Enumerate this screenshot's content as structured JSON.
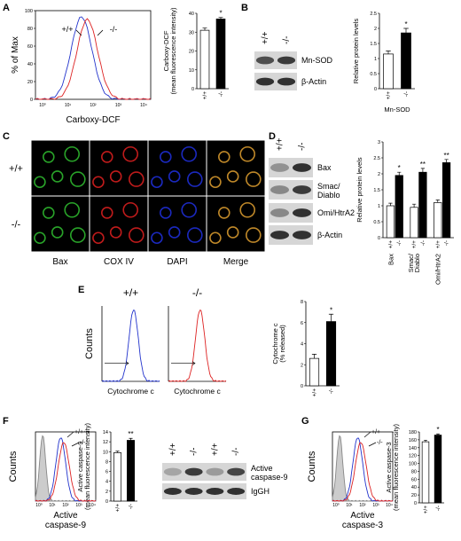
{
  "panels": [
    "A",
    "B",
    "C",
    "D",
    "E",
    "F",
    "G"
  ],
  "chart_data": [
    {
      "type": "bar",
      "ylabel": [
        "Carboxy-DCF",
        "(mean fluorescence intensity)"
      ],
      "categories": [
        "+/+",
        "-/-"
      ],
      "values": [
        31,
        37
      ],
      "errors": [
        1.2,
        0.8
      ],
      "colors": [
        "#ffffff",
        "#000000"
      ],
      "significance": [
        null,
        "*"
      ],
      "ylim": [
        0,
        40
      ],
      "yticks": [
        0,
        10,
        20,
        30,
        40
      ]
    },
    {
      "type": "bar",
      "ylabel": [
        "Relative protein levels"
      ],
      "xlabel": "Mn-SOD",
      "categories": [
        "+/+",
        "-/-"
      ],
      "values": [
        1.15,
        1.85
      ],
      "errors": [
        0.1,
        0.15
      ],
      "colors": [
        "#ffffff",
        "#000000"
      ],
      "significance": [
        null,
        "*"
      ],
      "ylim": [
        0,
        2.5
      ],
      "yticks": [
        0,
        0.5,
        1,
        1.5,
        2,
        2.5
      ]
    },
    {
      "type": "bar",
      "ylabel": [
        "Relative protein levels"
      ],
      "categories": [
        "Bax",
        [
          "Smac/",
          "Diablo"
        ],
        "Omi/HtrA2"
      ],
      "series": [
        {
          "name": "+/+",
          "color": "#ffffff",
          "values": [
            1,
            0.95,
            1.1
          ],
          "errors": [
            0.08,
            0.1,
            0.08
          ]
        },
        {
          "name": "-/-",
          "color": "#000000",
          "values": [
            1.95,
            2.05,
            2.35
          ],
          "errors": [
            0.1,
            0.12,
            0.1
          ]
        }
      ],
      "significance": [
        "*",
        "**",
        "**"
      ],
      "ylim": [
        0,
        3
      ],
      "yticks": [
        0,
        0.5,
        1,
        1.5,
        2,
        2.5,
        3
      ]
    },
    {
      "type": "bar",
      "ylabel": [
        "Cytochrome c",
        "(% released)"
      ],
      "categories": [
        "+/+",
        "-/-"
      ],
      "values": [
        2.6,
        6.1
      ],
      "errors": [
        0.4,
        0.7
      ],
      "colors": [
        "#ffffff",
        "#000000"
      ],
      "significance": [
        null,
        "*"
      ],
      "ylim": [
        0,
        8
      ],
      "yticks": [
        0,
        2,
        4,
        6,
        8
      ]
    },
    {
      "type": "bar",
      "ylabel": [
        "Active caspase-9",
        "(mean fluorescence intensity)"
      ],
      "categories": [
        "+/+",
        "-/-"
      ],
      "values": [
        9.8,
        12.3
      ],
      "errors": [
        0.3,
        0.4
      ],
      "colors": [
        "#ffffff",
        "#000000"
      ],
      "significance": [
        null,
        "**"
      ],
      "ylim": [
        0,
        14
      ],
      "yticks": [
        0,
        2,
        4,
        6,
        8,
        10,
        12,
        14
      ]
    },
    {
      "type": "bar",
      "ylabel": [
        "Active caspase-3",
        "(mean fluorescence intensity)"
      ],
      "categories": [
        "+/+",
        "-/-"
      ],
      "values": [
        155,
        172
      ],
      "errors": [
        4,
        3
      ],
      "colors": [
        "#ffffff",
        "#000000"
      ],
      "significance": [
        null,
        "*"
      ],
      "ylim": [
        0,
        180
      ],
      "yticks": [
        0,
        20,
        40,
        60,
        80,
        100,
        120,
        140,
        160,
        180
      ]
    }
  ],
  "flow": [
    {
      "ylabel": "% of Max",
      "xlabel": "Carboxy-DCF",
      "ylim": [
        0,
        100
      ],
      "yticks": [
        0,
        20,
        40,
        60,
        80,
        100
      ],
      "xtick_labels": [
        "10⁰",
        "10¹",
        "10²",
        "10³",
        "10⁴"
      ],
      "labels": [
        "+/+",
        "-/-"
      ]
    },
    {
      "titles": [
        "+/+",
        "-/-"
      ],
      "ylabel": "Counts",
      "xlabel": "Cytochrome c"
    },
    {
      "ylabel": "Counts",
      "xlabel": [
        "Active",
        "caspase-9"
      ],
      "xtick_labels": [
        "10⁰",
        "10¹",
        "10²",
        "10³",
        "10⁴"
      ],
      "labels": [
        "+/+",
        "-/-"
      ]
    },
    {
      "ylabel": "Counts",
      "xlabel": [
        "Active",
        "caspase-3"
      ],
      "xtick_labels": [
        "10⁰",
        "10¹",
        "10²",
        "10³",
        "10⁴"
      ],
      "labels": [
        "+/+",
        "-/-"
      ]
    }
  ],
  "blots": [
    {
      "columns": [
        "+/+",
        "-/-"
      ],
      "bands": [
        "Mn-SOD",
        "β-Actin"
      ]
    },
    {
      "columns": [
        "+/+",
        "-/-"
      ],
      "bands": [
        "Bax",
        [
          "Smac/",
          "Diablo"
        ],
        "Omi/HtrA2",
        "β-Actin"
      ]
    },
    {
      "columns": [
        "+/+",
        "-/-",
        "+/+",
        "-/-"
      ],
      "bands": [
        [
          "Active",
          "caspase-9"
        ],
        "IgGH"
      ]
    }
  ],
  "microscopy": {
    "rows": [
      "+/+",
      "-/-"
    ],
    "columns": [
      "Bax",
      "COX IV",
      "DAPI",
      "Merge"
    ]
  }
}
